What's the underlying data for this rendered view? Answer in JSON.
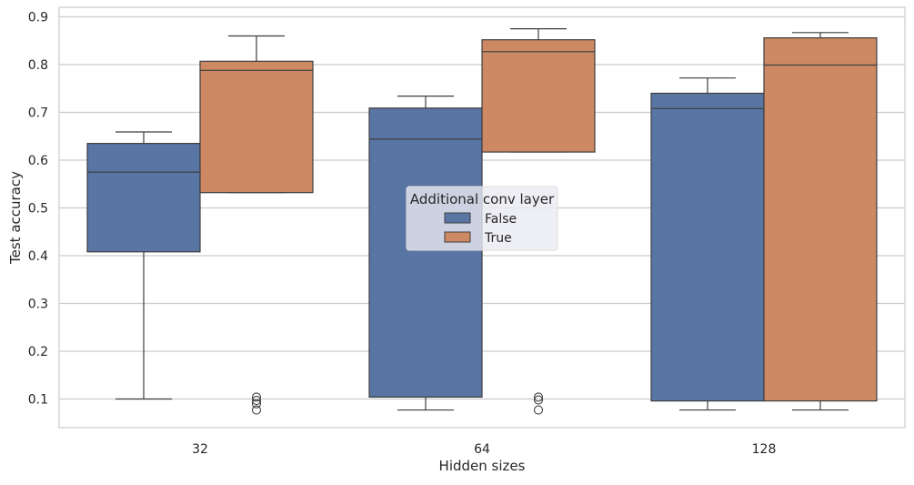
{
  "chart_data": {
    "type": "box",
    "xlabel": "Hidden sizes",
    "ylabel": "Test accuracy",
    "categories": [
      "32",
      "64",
      "128"
    ],
    "ylim": [
      0.04,
      0.92
    ],
    "yticks": [
      0.1,
      0.2,
      0.3,
      0.4,
      0.5,
      0.6,
      0.7,
      0.8,
      0.9
    ],
    "ytick_labels": [
      "0.1",
      "0.2",
      "0.3",
      "0.4",
      "0.5",
      "0.6",
      "0.7",
      "0.8",
      "0.9"
    ],
    "grid": true,
    "legend": {
      "title": "Additional conv layer",
      "placement": "center"
    },
    "series": [
      {
        "name": "False",
        "color": "#5975a4",
        "boxes": [
          {
            "category": "32",
            "whisker_low": 0.1,
            "q1": 0.408,
            "median": 0.575,
            "q3": 0.635,
            "whisker_high": 0.659,
            "outliers": []
          },
          {
            "category": "64",
            "whisker_low": 0.077,
            "q1": 0.104,
            "median": 0.644,
            "q3": 0.709,
            "whisker_high": 0.734,
            "outliers": []
          },
          {
            "category": "128",
            "whisker_low": 0.077,
            "q1": 0.096,
            "median": 0.708,
            "q3": 0.74,
            "whisker_high": 0.772,
            "outliers": []
          }
        ]
      },
      {
        "name": "True",
        "color": "#cc8963",
        "boxes": [
          {
            "category": "32",
            "whisker_low": 0.532,
            "q1": 0.532,
            "median": 0.788,
            "q3": 0.807,
            "whisker_high": 0.86,
            "outliers": [
              0.104,
              0.097,
              0.09,
              0.077
            ]
          },
          {
            "category": "64",
            "whisker_low": 0.617,
            "q1": 0.617,
            "median": 0.827,
            "q3": 0.852,
            "whisker_high": 0.875,
            "outliers": [
              0.104,
              0.098,
              0.077
            ]
          },
          {
            "category": "128",
            "whisker_low": 0.077,
            "q1": 0.096,
            "median": 0.799,
            "q3": 0.856,
            "whisker_high": 0.867,
            "outliers": []
          }
        ]
      }
    ]
  }
}
